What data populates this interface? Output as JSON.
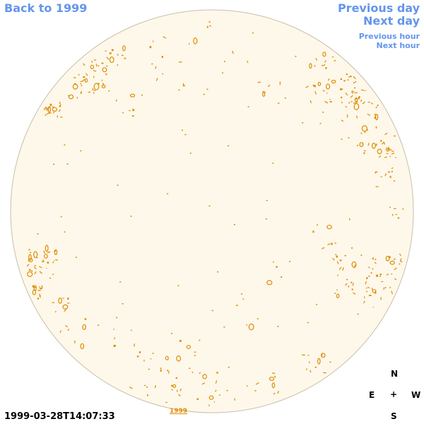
{
  "nav": {
    "back_label": "Back to 1999",
    "previous_day_label": "Previous day",
    "next_day_label": "Next day",
    "previous_hour_label": "Previous hour",
    "next_hour_label": "Next hour"
  },
  "observation": {
    "timestamp": "1999-03-28T14:07:33",
    "year_link": "1999"
  },
  "compass": {
    "north": "N",
    "south": "S",
    "east": "E",
    "west": "W",
    "center": "+"
  },
  "colors": {
    "disk_fill": "#fdf8ea",
    "disk_stroke": "#c9bfa8",
    "feature": "#e08a00",
    "link": "#6495ed"
  }
}
